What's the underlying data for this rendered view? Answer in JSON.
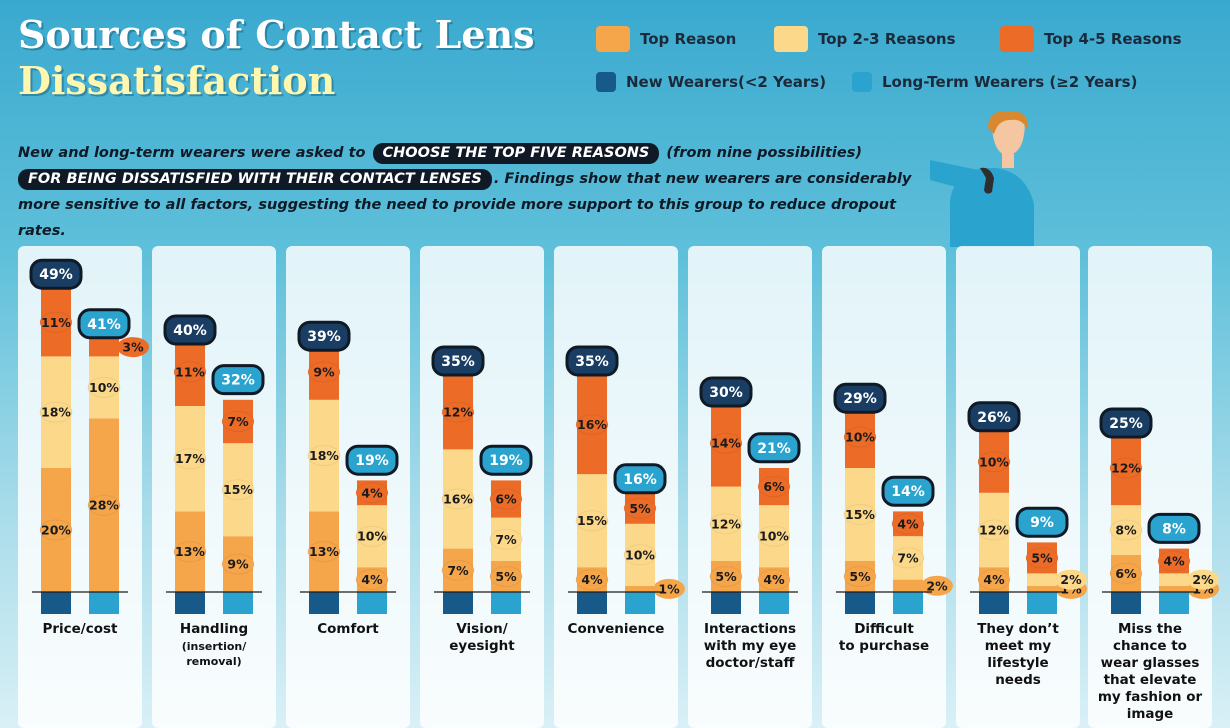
{
  "header": {
    "title_line1": "Sources of Contact Lens",
    "title_line2": "Dissatisfaction"
  },
  "legend": {
    "rank_items": [
      {
        "label": "Top Reason",
        "color": "#f5a54a"
      },
      {
        "label": "Top 2-3 Reasons",
        "color": "#fcd98a"
      },
      {
        "label": "Top 4-5 Reasons",
        "color": "#ec6b27"
      }
    ],
    "group_items": [
      {
        "label": "New Wearers(<2 Years)",
        "color": "#175989"
      },
      {
        "label": "Long-Term Wearers (≥2 Years)",
        "color": "#2aa3cf"
      }
    ]
  },
  "intro": {
    "part1": "New and long-term wearers were asked to",
    "pill1": "CHOOSE THE TOP FIVE REASONS",
    "part2": "(from nine possibilities)",
    "pill2": "FOR BEING DISSATISFIED WITH THEIR CONTACT LENSES",
    "part3": ". Findings show that new wearers are considerably more sensitive to all factors, suggesting the need to provide more support to this group to reduce dropout rates."
  },
  "illustration": {
    "icon": "thumbs-down-person-icon"
  },
  "chart_data": {
    "type": "bar",
    "stacked": true,
    "ylim": [
      0,
      50
    ],
    "categories": [
      [
        "Price/cost"
      ],
      [
        "Handling",
        "(insertion/",
        "removal)"
      ],
      [
        "Comfort"
      ],
      [
        "Vision/",
        "eyesight"
      ],
      [
        "Convenience"
      ],
      [
        "Interactions",
        "with my eye",
        "doctor/staff"
      ],
      [
        "Difficult",
        "to purchase"
      ],
      [
        "They don’t",
        "meet my",
        "lifestyle",
        "needs"
      ],
      [
        "Miss the",
        "chance to",
        "wear glasses",
        "that elevate",
        "my fashion or",
        "image"
      ]
    ],
    "groups": [
      "New Wearers(<2 Years)",
      "Long-Term Wearers (≥2 Years)"
    ],
    "segments": [
      "Top Reason",
      "Top 2-3 Reasons",
      "Top 4-5 Reasons"
    ],
    "new_wearers": {
      "total": [
        49,
        40,
        39,
        35,
        35,
        30,
        29,
        26,
        25
      ],
      "top": [
        20,
        13,
        13,
        7,
        4,
        5,
        5,
        4,
        6
      ],
      "top2_3": [
        18,
        17,
        18,
        16,
        15,
        12,
        15,
        12,
        8
      ],
      "top4_5": [
        11,
        11,
        9,
        12,
        16,
        14,
        10,
        10,
        12
      ]
    },
    "long_term_wearers": {
      "total": [
        41,
        32,
        19,
        19,
        16,
        21,
        14,
        9,
        8
      ],
      "top": [
        28,
        9,
        4,
        5,
        1,
        4,
        2,
        1,
        1
      ],
      "top2_3": [
        10,
        15,
        10,
        7,
        10,
        10,
        7,
        2,
        2
      ],
      "top4_5": [
        3,
        7,
        4,
        6,
        5,
        6,
        4,
        5,
        4
      ]
    },
    "colors": {
      "top": "#f5a54a",
      "top2_3": "#fcd98a",
      "top4_5": "#ec6b27",
      "new_base": "#175989",
      "long_base": "#2aa3cf",
      "new_badge": "#1a3e63",
      "long_badge": "#2aa3cf"
    }
  }
}
